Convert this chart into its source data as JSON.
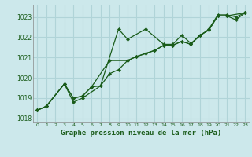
{
  "title": "Graphe pression niveau de la mer (hPa)",
  "bg_color": "#cce8eb",
  "grid_color": "#b0d4d8",
  "line_color": "#1a5c1a",
  "marker_color": "#1a5c1a",
  "xlim": [
    -0.5,
    23.5
  ],
  "ylim": [
    1017.8,
    1023.6
  ],
  "yticks": [
    1018,
    1019,
    1020,
    1021,
    1022,
    1023
  ],
  "xticks": [
    0,
    1,
    2,
    3,
    4,
    5,
    6,
    7,
    8,
    9,
    10,
    11,
    12,
    13,
    14,
    15,
    16,
    17,
    18,
    19,
    20,
    21,
    22,
    23
  ],
  "series": [
    {
      "x": [
        0,
        1,
        3,
        4,
        5,
        7,
        9,
        10,
        12,
        14,
        15,
        16,
        17,
        19,
        20,
        21,
        22,
        23
      ],
      "y": [
        1018.4,
        1018.6,
        1019.7,
        1018.8,
        1019.0,
        1019.6,
        1022.4,
        1021.9,
        1022.4,
        1021.65,
        1021.65,
        1022.1,
        1021.7,
        1022.4,
        1023.1,
        1023.1,
        1023.0,
        1023.2
      ]
    },
    {
      "x": [
        0,
        1,
        3,
        4,
        5,
        6,
        8,
        10,
        11,
        13,
        14,
        15,
        16,
        17,
        18,
        19,
        20,
        21,
        23
      ],
      "y": [
        1018.4,
        1018.6,
        1019.7,
        1019.0,
        1019.1,
        1019.55,
        1020.85,
        1020.85,
        1021.05,
        1021.35,
        1021.6,
        1021.6,
        1021.8,
        1021.65,
        1022.1,
        1022.35,
        1023.05,
        1023.05,
        1023.2
      ]
    },
    {
      "x": [
        0,
        1,
        3,
        4,
        5,
        6,
        7,
        8,
        9,
        10,
        11,
        12,
        13,
        14,
        15,
        16,
        17,
        18,
        19,
        20,
        21,
        22,
        23
      ],
      "y": [
        1018.4,
        1018.6,
        1019.7,
        1019.0,
        1019.1,
        1019.55,
        1019.6,
        1020.2,
        1020.4,
        1020.85,
        1021.05,
        1021.2,
        1021.35,
        1021.6,
        1021.6,
        1021.8,
        1021.65,
        1022.1,
        1022.35,
        1023.05,
        1023.05,
        1022.85,
        1023.2
      ]
    }
  ]
}
